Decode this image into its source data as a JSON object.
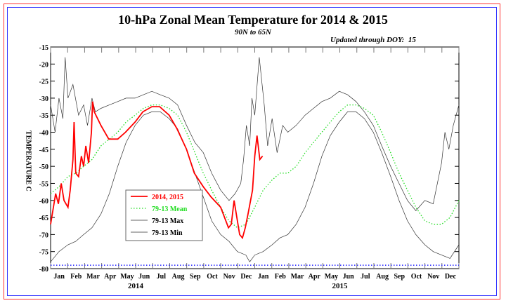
{
  "chart_data": {
    "type": "line",
    "title": "10-hPa Zonal Mean Temperature for 2014 & 2015",
    "subtitle": "90N to 65N",
    "annotation": "Updated through DOY:  15",
    "ylabel": "TEMPERATURE C",
    "xlabel": "",
    "ylim": [
      -80,
      -15
    ],
    "xlim_days": [
      0,
      730
    ],
    "yticks": [
      -15,
      -20,
      -25,
      -30,
      -35,
      -40,
      -45,
      -50,
      -55,
      -60,
      -65,
      -70,
      -75,
      -80
    ],
    "month_labels": [
      "Jan",
      "Feb",
      "Mar",
      "Apr",
      "May",
      "Jun",
      "Jul",
      "Aug",
      "Sep",
      "Oct",
      "Nov",
      "Dec",
      "Jan",
      "Feb",
      "Mar",
      "Apr",
      "May",
      "Jun",
      "Jul",
      "Aug",
      "Sep",
      "Oct",
      "Nov",
      "Dec"
    ],
    "year_labels": [
      "2014",
      "2015"
    ],
    "reference_line": -79,
    "legend": {
      "placement": "lower-left",
      "entries": [
        "2014, 2015",
        "79-13 Mean",
        "79-13 Max",
        "79-13 Min"
      ]
    },
    "colors": {
      "obs": "#ff0000",
      "mean": "#22dd22",
      "max": "#333333",
      "min": "#333333",
      "ref": "#2222ff"
    },
    "series": [
      {
        "name": "2014, 2015",
        "days": [
          0,
          9,
          14,
          19,
          24,
          31,
          35,
          40,
          42,
          45,
          50,
          55,
          59,
          63,
          68,
          73,
          75,
          78,
          90,
          104,
          120,
          134,
          151,
          165,
          181,
          195,
          212,
          226,
          243,
          257,
          273,
          287,
          304,
          318,
          323,
          328,
          334,
          338,
          343,
          348,
          353,
          361,
          365,
          369,
          374,
          379
        ],
        "values": [
          -67,
          -58,
          -61,
          -55,
          -60,
          -62,
          -57,
          -48,
          -37,
          -52,
          -53,
          -47,
          -50,
          -44,
          -49,
          -40,
          -31,
          -34,
          -38,
          -42,
          -42,
          -40,
          -37,
          -34,
          -32.5,
          -32.5,
          -35,
          -39,
          -45,
          -52,
          -56,
          -59,
          -62,
          -68,
          -67,
          -60,
          -66,
          -70,
          -71,
          -68,
          -64,
          -57,
          -47,
          -41,
          -48,
          -47
        ]
      },
      {
        "name": "79-13 Mean",
        "days": [
          0,
          15,
          31,
          45,
          59,
          74,
          90,
          105,
          120,
          135,
          151,
          166,
          181,
          196,
          212,
          227,
          243,
          258,
          273,
          288,
          304,
          319,
          334,
          349,
          365,
          380,
          396,
          410,
          424,
          439,
          455,
          470,
          485,
          500,
          516,
          531,
          546,
          561,
          577,
          592,
          608,
          623,
          638,
          653,
          669,
          684,
          699,
          714,
          730
        ],
        "values": [
          -58,
          -56,
          -53,
          -52,
          -50,
          -48,
          -44,
          -42,
          -40,
          -37,
          -35,
          -33,
          -32,
          -32,
          -33,
          -35,
          -40,
          -46,
          -52,
          -57,
          -62,
          -66,
          -68,
          -67,
          -62,
          -57,
          -54,
          -52,
          -52,
          -50,
          -46,
          -43,
          -40,
          -37,
          -34,
          -32,
          -32,
          -33,
          -35,
          -40,
          -46,
          -52,
          -57,
          -62,
          -66,
          -67,
          -67,
          -65,
          -60
        ]
      },
      {
        "name": "79-13 Max",
        "days": [
          0,
          8,
          15,
          22,
          26,
          31,
          40,
          50,
          59,
          66,
          74,
          80,
          90,
          105,
          120,
          135,
          151,
          166,
          181,
          196,
          212,
          227,
          243,
          258,
          273,
          288,
          304,
          319,
          330,
          340,
          345,
          350,
          356,
          360,
          365,
          373,
          382,
          388,
          396,
          405,
          415,
          424,
          439,
          455,
          470,
          485,
          500,
          516,
          531,
          546,
          561,
          577,
          592,
          608,
          623,
          638,
          653,
          669,
          684,
          699,
          705,
          712,
          720,
          730
        ],
        "values": [
          -32,
          -40,
          -30,
          -36,
          -18,
          -30,
          -26,
          -35,
          -32,
          -38,
          -30,
          -34,
          -33,
          -32,
          -31,
          -30,
          -30,
          -29,
          -28,
          -29,
          -30,
          -32,
          -38,
          -43,
          -46,
          -52,
          -57,
          -60,
          -58,
          -55,
          -48,
          -38,
          -44,
          -30,
          -35,
          -18,
          -32,
          -44,
          -36,
          -46,
          -38,
          -40,
          -38,
          -35,
          -33,
          -31,
          -30,
          -28,
          -29,
          -31,
          -34,
          -38,
          -44,
          -50,
          -55,
          -60,
          -63,
          -60,
          -61,
          -49,
          -40,
          -45,
          -38,
          -32
        ]
      },
      {
        "name": "79-13 Min",
        "days": [
          0,
          15,
          31,
          45,
          59,
          74,
          90,
          105,
          120,
          135,
          151,
          166,
          181,
          196,
          212,
          227,
          243,
          258,
          273,
          288,
          304,
          319,
          334,
          349,
          356,
          365,
          380,
          396,
          410,
          424,
          439,
          455,
          470,
          485,
          500,
          516,
          531,
          546,
          561,
          577,
          592,
          608,
          623,
          638,
          653,
          669,
          684,
          699,
          714,
          730
        ],
        "values": [
          -78,
          -75,
          -73,
          -72,
          -70,
          -68,
          -64,
          -58,
          -50,
          -43,
          -38,
          -35,
          -34,
          -34,
          -36,
          -39,
          -45,
          -52,
          -59,
          -66,
          -70,
          -72,
          -75,
          -76,
          -78,
          -76,
          -75,
          -73,
          -71,
          -70,
          -67,
          -62,
          -55,
          -47,
          -41,
          -37,
          -34,
          -34,
          -36,
          -40,
          -46,
          -53,
          -60,
          -66,
          -70,
          -73,
          -75,
          -76,
          -77,
          -73
        ]
      }
    ]
  }
}
